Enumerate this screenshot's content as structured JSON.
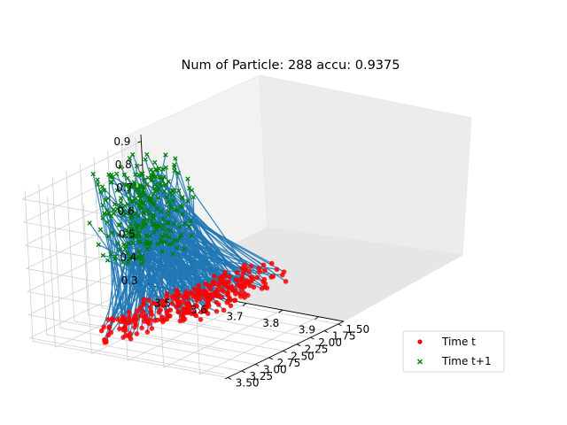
{
  "chart_data": {
    "type": "scatter",
    "projection": "3d",
    "title": "Num of Particle: 288 accu: 0.9375",
    "xlabel": "",
    "ylabel": "",
    "zlabel": "",
    "x_ticks": [
      "3.5",
      "3.6",
      "3.7",
      "3.8",
      "3.9"
    ],
    "y_ticks": [
      "1.50",
      "1.75",
      "2.00",
      "2.25",
      "2.50",
      "2.75",
      "3.00",
      "3.25",
      "3.50"
    ],
    "z_ticks": [
      "0.3",
      "0.4",
      "0.5",
      "0.6",
      "0.7",
      "0.8",
      "0.9"
    ],
    "xlim": [
      3.43,
      3.97
    ],
    "ylim": [
      1.4,
      3.55
    ],
    "zlim": [
      0.28,
      0.93
    ],
    "grid": true,
    "legend_position": "lower-right",
    "series": [
      {
        "name": "Time t",
        "marker": "circle",
        "color": "#ff0000"
      },
      {
        "name": "Time t+1",
        "marker": "x",
        "color": "#008000"
      }
    ],
    "connector_color": "#1f77b4",
    "num_particles": 288
  }
}
